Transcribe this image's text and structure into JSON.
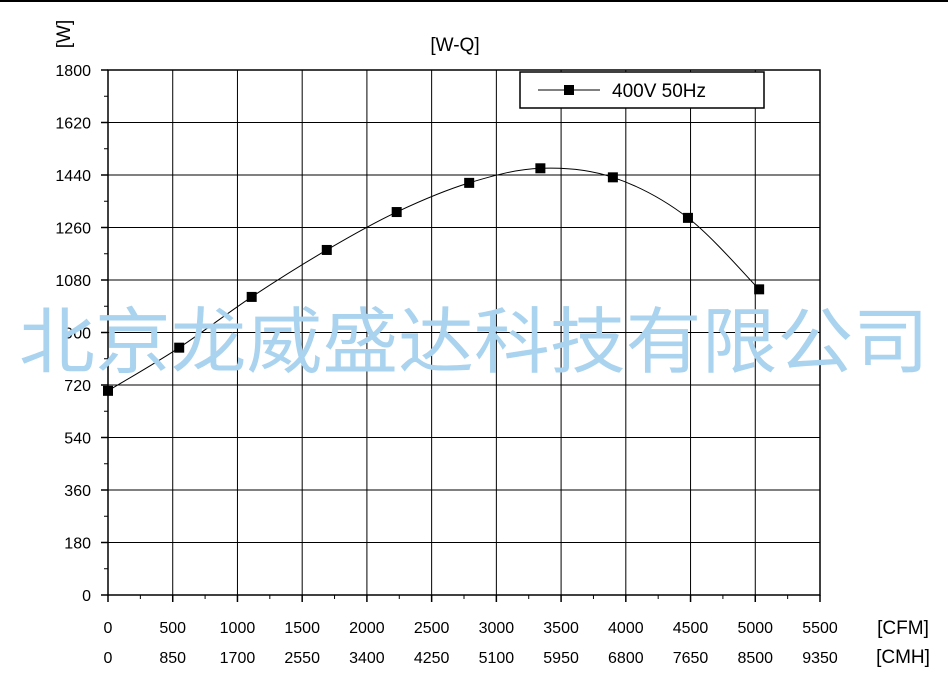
{
  "chart_data": {
    "type": "line",
    "title": "[W-Q]",
    "ylabel": "[W]",
    "xlabel": "[CFM]",
    "x2label": "[CMH]",
    "xlim": [
      0,
      5500
    ],
    "ylim": [
      0,
      1800
    ],
    "x_ticks": [
      0,
      500,
      1000,
      1500,
      2000,
      2500,
      3000,
      3500,
      4000,
      4500,
      5000,
      5500
    ],
    "x_tick_labels": [
      "0",
      "500",
      "1000",
      "1500",
      "2000",
      "2500",
      "3000",
      "3500",
      "4000",
      "4500",
      "5000",
      "5500"
    ],
    "x2_tick_labels": [
      "0",
      "850",
      "1700",
      "2550",
      "3400",
      "4250",
      "5100",
      "5950",
      "6800",
      "7650",
      "8500",
      "9350"
    ],
    "y_ticks": [
      0,
      180,
      360,
      540,
      720,
      900,
      1080,
      1260,
      1440,
      1620,
      1800
    ],
    "y_tick_labels": [
      "0",
      "180",
      "360",
      "540",
      "720",
      "900",
      "1080",
      "1260",
      "1440",
      "1620",
      "1800"
    ],
    "grid": true,
    "legend_position": "top-right",
    "series": [
      {
        "name": "400V 50Hz",
        "color": "#000000",
        "marker": "square",
        "x": [
          0,
          550,
          1110,
          1690,
          2230,
          2790,
          3340,
          3900,
          4480,
          5030
        ],
        "y": [
          700,
          848,
          1022,
          1183,
          1313,
          1413,
          1463,
          1432,
          1293,
          1048
        ]
      }
    ],
    "watermark": "北京龙威盛达科技有限公司",
    "watermark_color": "#a9d3ee"
  }
}
